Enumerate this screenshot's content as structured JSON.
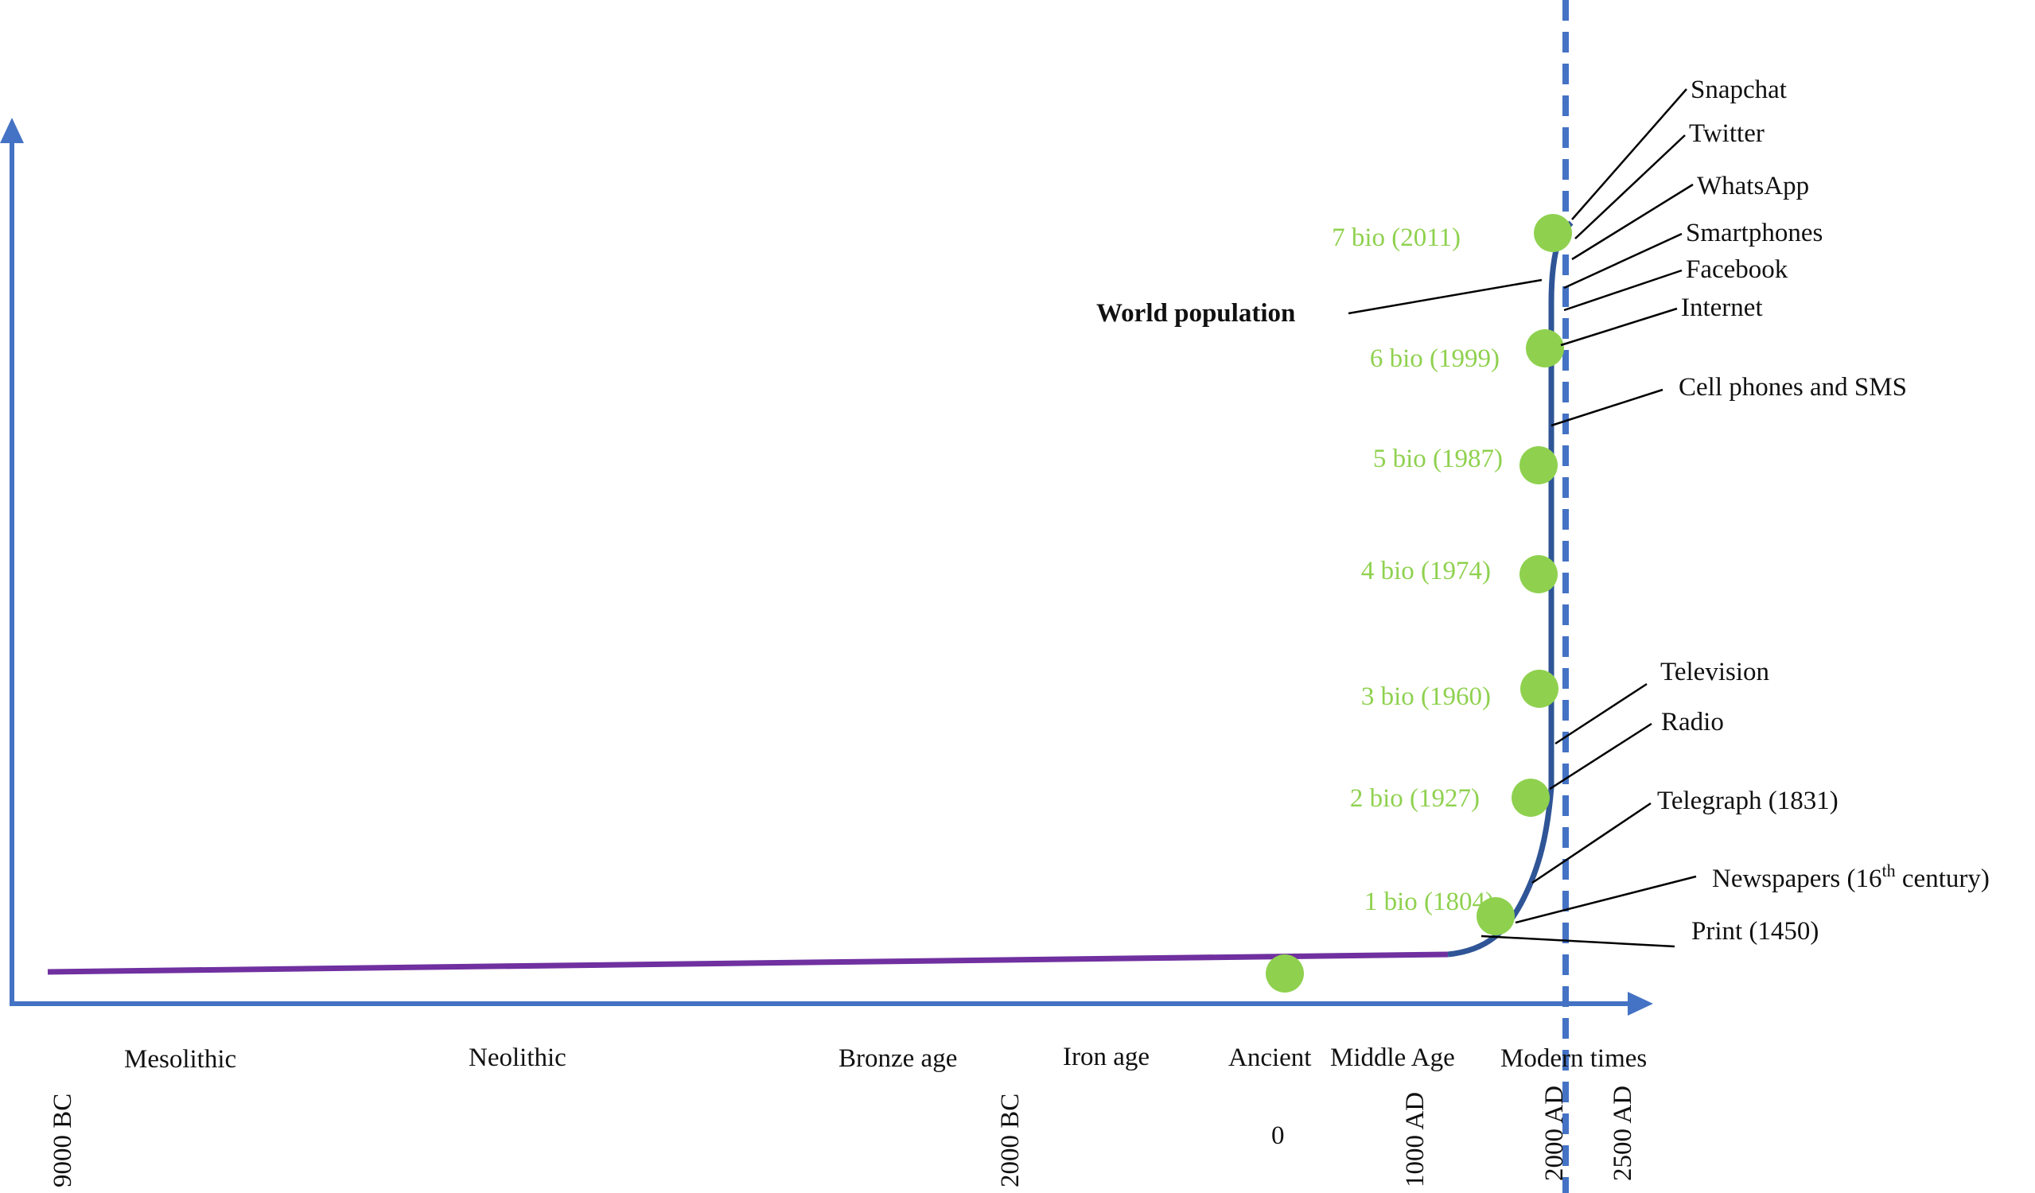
{
  "diagram": {
    "world_population_label": "World population",
    "colors": {
      "axis": "#4472c4",
      "early_curve": "#7030a0",
      "modern_curve": "#2f5597",
      "dashed_now": "#4472c4",
      "milestone_dot": "#8fd14f",
      "milestone_text": "#8fd14f"
    },
    "eras": [
      "Mesolithic",
      "Neolithic",
      "Bronze age",
      "Iron age",
      "Ancient",
      "Middle Age",
      "Modern times"
    ],
    "dates": [
      "9000 BC",
      "2000 BC",
      "0",
      "1000 AD",
      "2000 AD",
      "2500 AD"
    ],
    "population_milestones": [
      {
        "label": "1 bio (1804)",
        "population_billions": 1,
        "year": 1804
      },
      {
        "label": "2 bio (1927)",
        "population_billions": 2,
        "year": 1927
      },
      {
        "label": "3 bio (1960)",
        "population_billions": 3,
        "year": 1960
      },
      {
        "label": "4 bio (1974)",
        "population_billions": 4,
        "year": 1974
      },
      {
        "label": "5 bio (1987)",
        "population_billions": 5,
        "year": 1987
      },
      {
        "label": "6 bio (1999)",
        "population_billions": 6,
        "year": 1999
      },
      {
        "label": "7 bio (2011)",
        "population_billions": 7,
        "year": 2011
      }
    ],
    "technologies": [
      {
        "main": "Snapchat"
      },
      {
        "main": "Twitter"
      },
      {
        "main": "WhatsApp"
      },
      {
        "main": "Smartphones"
      },
      {
        "main": "Facebook"
      },
      {
        "main": "Internet"
      },
      {
        "main": "Cell phones and SMS"
      },
      {
        "main": "Television"
      },
      {
        "main": "Radio"
      },
      {
        "main": "Telegraph (1831)"
      },
      {
        "main": "Newspapers (16",
        "sup": "th",
        "tail": " century)"
      },
      {
        "main": "Print (1450)"
      }
    ]
  }
}
